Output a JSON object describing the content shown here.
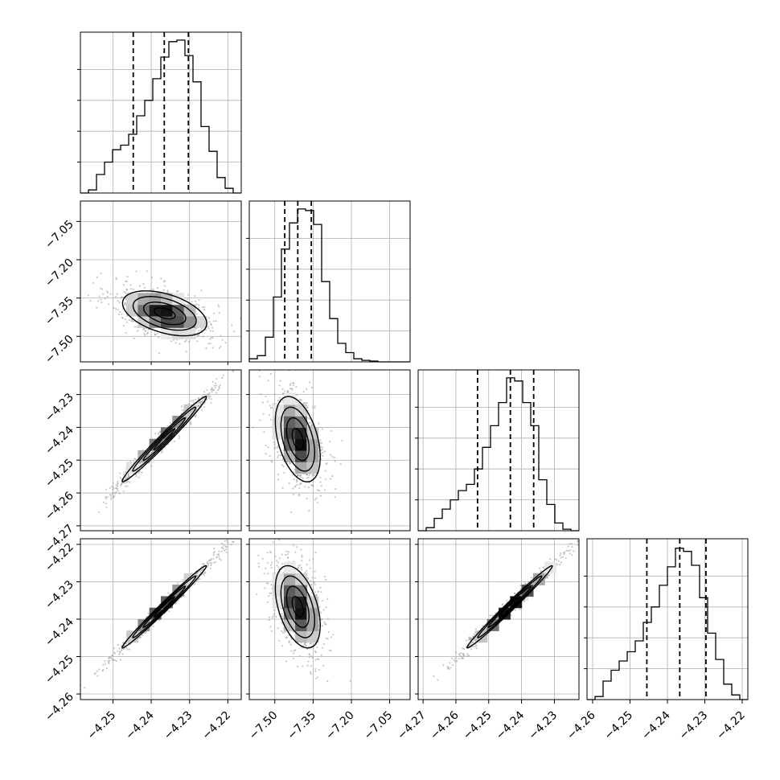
{
  "chart_data": {
    "type": "corner",
    "n_params": 4,
    "grid": true,
    "colors": {
      "axes": "#000000",
      "grid": "#b0b0b0",
      "density": "#000000",
      "points": "#9a9a9a"
    },
    "params": [
      {
        "range": [
          -4.2585,
          -4.2165
        ],
        "ticks": [
          -4.25,
          -4.24,
          -4.23,
          -4.22
        ],
        "tick_labels": [
          "−4.25",
          "−4.24",
          "−4.23",
          "−4.22"
        ],
        "quantiles": [
          -4.2447,
          -4.2366,
          -4.2303
        ],
        "hist_max": 1.0,
        "hist": [
          0.0,
          0.02,
          0.12,
          0.2,
          0.28,
          0.31,
          0.38,
          0.5,
          0.6,
          0.74,
          0.88,
          0.98,
          0.99,
          0.89,
          0.72,
          0.43,
          0.27,
          0.1,
          0.03,
          0.0
        ]
      },
      {
        "range": [
          -7.6,
          -6.97
        ],
        "ticks": [
          -7.5,
          -7.35,
          -7.2,
          -7.05
        ],
        "tick_labels": [
          "−7.50",
          "−7.35",
          "−7.20",
          "−7.05"
        ],
        "quantiles": [
          -7.461,
          -7.41,
          -7.357
        ],
        "hist_max": 1.0,
        "hist": [
          0.02,
          0.04,
          0.16,
          0.42,
          0.73,
          0.9,
          0.99,
          0.98,
          0.89,
          0.52,
          0.28,
          0.12,
          0.06,
          0.02,
          0.01,
          0.005,
          0.0,
          0.0,
          0.0,
          0.0
        ]
      },
      {
        "range": [
          -4.2715,
          -4.2225
        ],
        "ticks": [
          -4.27,
          -4.26,
          -4.25,
          -4.24,
          -4.23
        ],
        "tick_labels": [
          "−4.27",
          "−4.26",
          "−4.25",
          "−4.24",
          "−4.23"
        ],
        "quantiles": [
          -4.2534,
          -4.2434,
          -4.2363
        ],
        "hist_max": 1.0,
        "hist": [
          0.0,
          0.02,
          0.08,
          0.14,
          0.2,
          0.26,
          0.3,
          0.4,
          0.54,
          0.68,
          0.83,
          0.99,
          0.97,
          0.83,
          0.68,
          0.33,
          0.17,
          0.05,
          0.01,
          0.0
        ]
      },
      {
        "range": [
          -4.2615,
          -4.2185
        ],
        "ticks": [
          -4.26,
          -4.25,
          -4.24,
          -4.23,
          -4.22
        ],
        "tick_labels": [
          "−4.26",
          "−4.25",
          "−4.24",
          "−4.23",
          "−4.22"
        ],
        "quantiles": [
          -4.2455,
          -4.2367,
          -4.2297
        ],
        "hist_max": 1.0,
        "hist": [
          0.0,
          0.02,
          0.12,
          0.19,
          0.25,
          0.31,
          0.38,
          0.5,
          0.6,
          0.74,
          0.86,
          0.98,
          0.96,
          0.87,
          0.66,
          0.43,
          0.26,
          0.1,
          0.03,
          0.0
        ]
      }
    ],
    "pairs": [
      {
        "x": 0,
        "y": 1,
        "mean": [
          -4.2365,
          -7.41
        ],
        "sd": [
          0.0055,
          0.044
        ],
        "rho": -0.45
      },
      {
        "x": 0,
        "y": 2,
        "mean": [
          -4.2366,
          -4.2436
        ],
        "sd": [
          0.0055,
          0.0065
        ],
        "rho": 0.985
      },
      {
        "x": 1,
        "y": 2,
        "mean": [
          -7.41,
          -4.2436
        ],
        "sd": [
          0.044,
          0.0065
        ],
        "rho": -0.42
      },
      {
        "x": 0,
        "y": 3,
        "mean": [
          -4.2366,
          -4.2367
        ],
        "sd": [
          0.0055,
          0.0055
        ],
        "rho": 0.99
      },
      {
        "x": 1,
        "y": 3,
        "mean": [
          -7.41,
          -4.2367
        ],
        "sd": [
          0.044,
          0.0055
        ],
        "rho": -0.45
      },
      {
        "x": 2,
        "y": 3,
        "mean": [
          -4.2436,
          -4.2367
        ],
        "sd": [
          0.0065,
          0.0055
        ],
        "rho": 0.99
      }
    ],
    "contour_levels_sigma": [
      0.5,
      1.0,
      1.5,
      2.0
    ]
  }
}
